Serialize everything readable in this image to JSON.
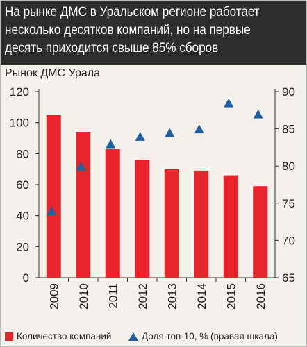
{
  "header": {
    "title": "На рынке ДМС в Уральском регионе работает несколько десятков компаний, но на первые десять приходится свыше 85% сборов"
  },
  "chart_data": {
    "type": "bar",
    "title": "На рынке ДМС в Уральском регионе работает несколько десятков компаний, но на первые десять приходится свыше 85% сборов",
    "subtitle": "Рынок ДМС Урала",
    "categories": [
      "2009",
      "2010",
      "2011",
      "2012",
      "2013",
      "2014",
      "2015",
      "2016"
    ],
    "series": [
      {
        "name": "Количество компаний",
        "type": "bar",
        "axis": "left",
        "color": "#e8242b",
        "values": [
          105,
          94,
          83,
          76,
          70,
          69,
          66,
          59
        ]
      },
      {
        "name": "Доля топ-10, % (правая шкала)",
        "type": "scatter",
        "marker": "triangle",
        "axis": "right",
        "color": "#1f5fa5",
        "values": [
          74,
          80,
          83,
          84,
          84.5,
          85,
          88.5,
          87
        ]
      }
    ],
    "y_left": {
      "min": 0,
      "max": 120,
      "ticks": [
        0,
        20,
        40,
        60,
        80,
        100,
        120
      ]
    },
    "y_right": {
      "min": 65,
      "max": 90,
      "ticks": [
        65,
        70,
        75,
        80,
        85,
        90
      ]
    },
    "grid": false,
    "legend_position": "bottom"
  },
  "legend": {
    "items": [
      {
        "label": "Количество компаний",
        "color": "#e8242b",
        "shape": "square"
      },
      {
        "label": "Доля топ-10, % (правая шкала)",
        "color": "#1f5fa5",
        "shape": "triangle"
      }
    ]
  }
}
